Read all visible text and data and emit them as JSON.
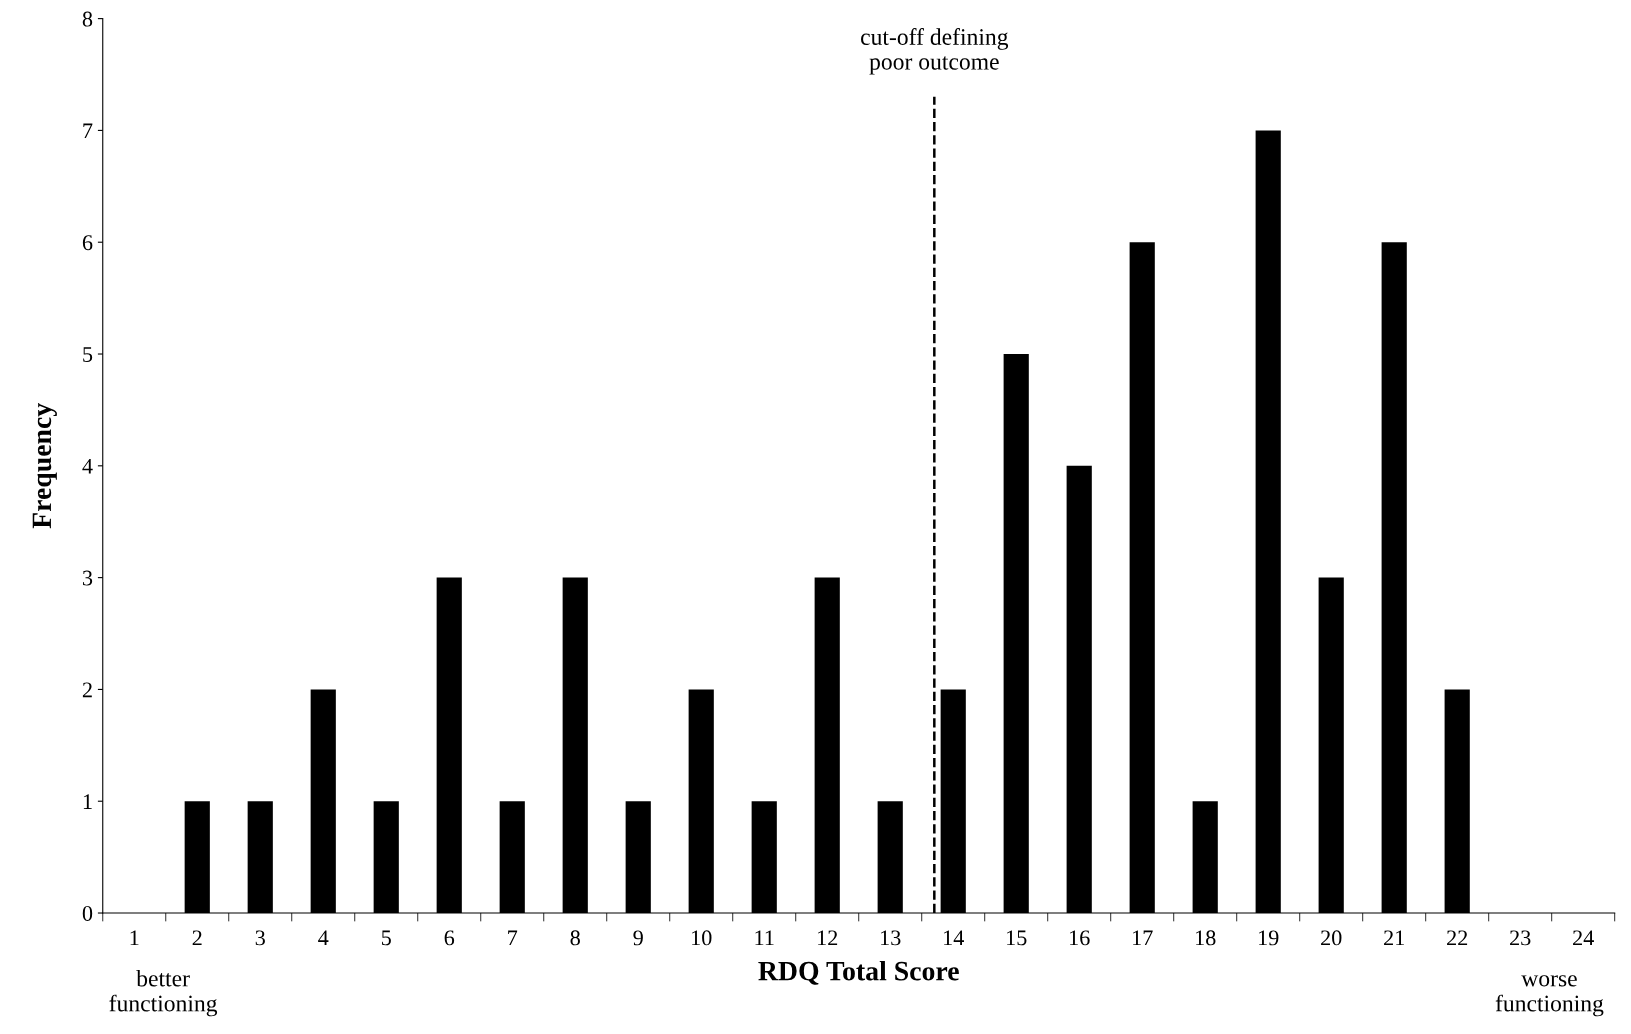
{
  "chart_data": {
    "type": "bar",
    "xlabel": "RDQ Total Score",
    "ylabel": "Frequency",
    "x": [
      1,
      2,
      3,
      4,
      5,
      6,
      7,
      8,
      9,
      10,
      11,
      12,
      13,
      14,
      15,
      16,
      17,
      18,
      19,
      20,
      21,
      22,
      23,
      24
    ],
    "xlim": [
      0.5,
      24.5
    ],
    "xticks": [
      1,
      2,
      3,
      4,
      5,
      6,
      7,
      8,
      9,
      10,
      11,
      12,
      13,
      14,
      15,
      16,
      17,
      18,
      19,
      20,
      21,
      22,
      23,
      24
    ],
    "values": [
      0,
      1,
      1,
      2,
      1,
      3,
      1,
      3,
      1,
      2,
      1,
      3,
      1,
      2,
      5,
      4,
      6,
      1,
      7,
      3,
      6,
      2,
      0,
      0
    ],
    "color": "#000000",
    "ylim": [
      0,
      8
    ],
    "yticks": [
      0,
      1,
      2,
      3,
      4,
      5,
      6,
      7,
      8
    ],
    "grid": false,
    "ref_lines": [
      {
        "axis": "x",
        "value": 13.7,
        "label": "cut-off defining\npoor outcome",
        "color": "#000000",
        "line_style": "dashed"
      }
    ],
    "annotations": [
      "better\nfunctioning",
      "worse\nfunctioning"
    ]
  }
}
